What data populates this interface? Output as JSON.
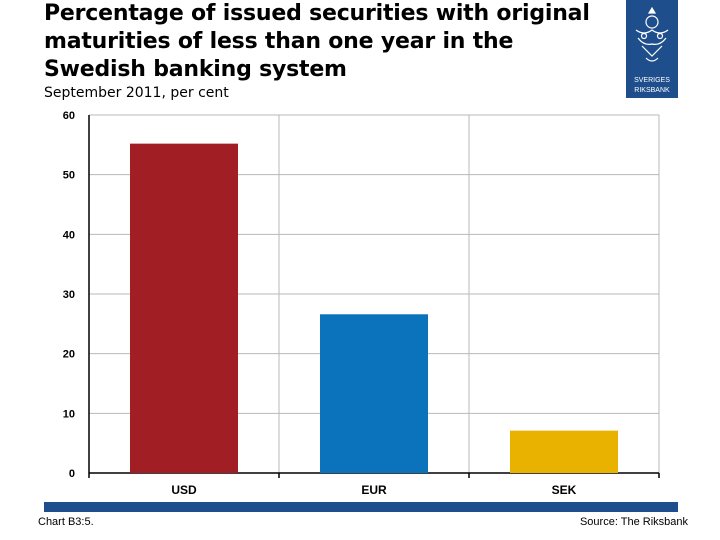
{
  "header": {
    "title": "Percentage of issued securities with original maturities of less than one year in the Swedish banking system",
    "subtitle": "September 2011, per cent",
    "logo_text_line1": "SVERIGES",
    "logo_text_line2": "RIKSBANK"
  },
  "footer": {
    "chart_id": "Chart B3:5.",
    "source": "Source: The Riksbank"
  },
  "colors": {
    "brand_blue": "#1f4e8c",
    "usd": "#a01e24",
    "eur": "#0a73bb",
    "sek": "#eab200"
  },
  "chart_data": {
    "type": "bar",
    "categories": [
      "USD",
      "EUR",
      "SEK"
    ],
    "values": [
      55.2,
      26.6,
      7.1
    ],
    "ylim": [
      0,
      60
    ],
    "yticks": [
      0,
      10,
      20,
      30,
      40,
      50,
      60
    ],
    "grid": true,
    "legend": "none"
  }
}
